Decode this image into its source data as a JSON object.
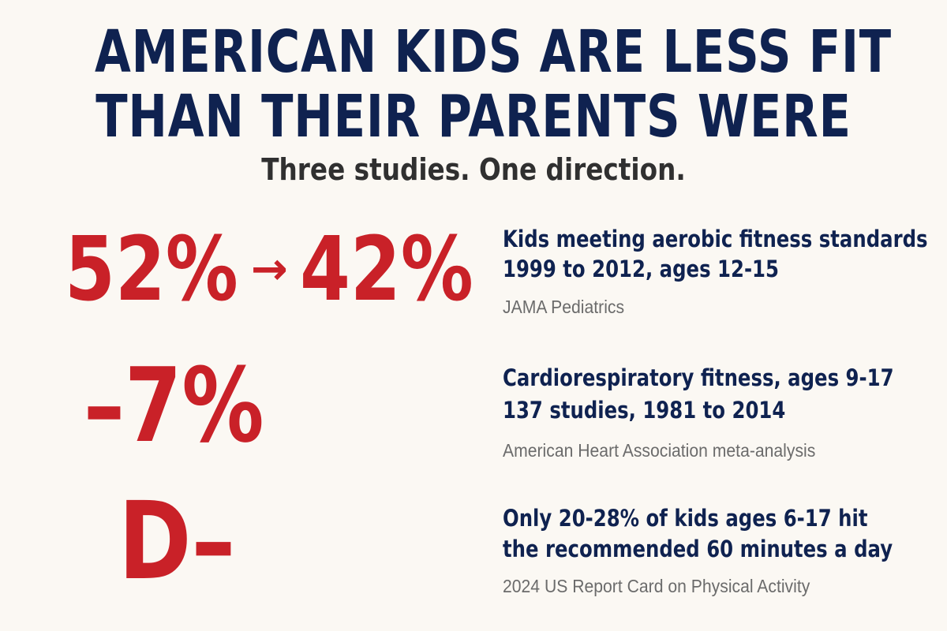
{
  "header": {
    "title_line1": "AMERICAN KIDS ARE LESS FIT",
    "title_line2": "THAN THEIR PARENTS WERE",
    "subtitle": "Three studies. One direction."
  },
  "stats": [
    {
      "value_from": "52%",
      "arrow": "→",
      "value_to": "42%",
      "line1": "Kids meeting aerobic fitness standards",
      "line2": "1999 to 2012, ages 12-15",
      "source": "JAMA Pediatrics"
    },
    {
      "value": "–7%",
      "line1": "Cardiorespiratory fitness, ages 9-17",
      "line2": "137 studies, 1981 to 2014",
      "source": "American Heart Association meta-analysis"
    },
    {
      "value": "D–",
      "line1": "Only 20-28% of kids ages 6-17 hit",
      "line2": "the recommended 60 minutes a day",
      "source": "2024 US Report Card on Physical Activity"
    }
  ],
  "colors": {
    "background": "#fbf8f3",
    "navy": "#0f2250",
    "red": "#c92128",
    "gray": "#6b6b6b"
  }
}
